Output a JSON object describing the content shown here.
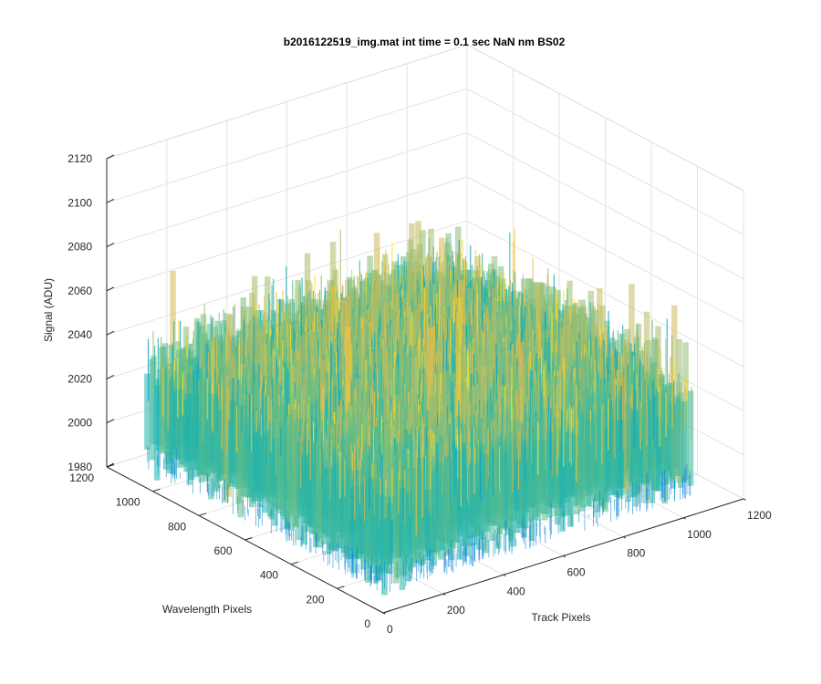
{
  "chart_data": {
    "type": "surface",
    "title": "b2016122519_img.mat int time = 0.1 sec  NaN nm BS02",
    "xlabel": "Track Pixels",
    "ylabel": "Wavelength Pixels",
    "zlabel": "Signal (ADU)",
    "xlim": [
      0,
      1200
    ],
    "ylim": [
      0,
      1200
    ],
    "zlim": [
      1980,
      2120
    ],
    "x_ticks": [
      "0",
      "200",
      "400",
      "600",
      "800",
      "1000",
      "1200"
    ],
    "y_ticks": [
      "0",
      "200",
      "400",
      "600",
      "800",
      "1000",
      "1200"
    ],
    "z_ticks": [
      "1980",
      "2000",
      "2020",
      "2040",
      "2060",
      "2080",
      "2100",
      "2120"
    ],
    "x_extent": [
      0,
      1024
    ],
    "y_extent": [
      0,
      1024
    ],
    "signal_mean": 2025,
    "signal_range": [
      1990,
      2105
    ],
    "colormap": "parula",
    "grid": true,
    "box": true
  }
}
